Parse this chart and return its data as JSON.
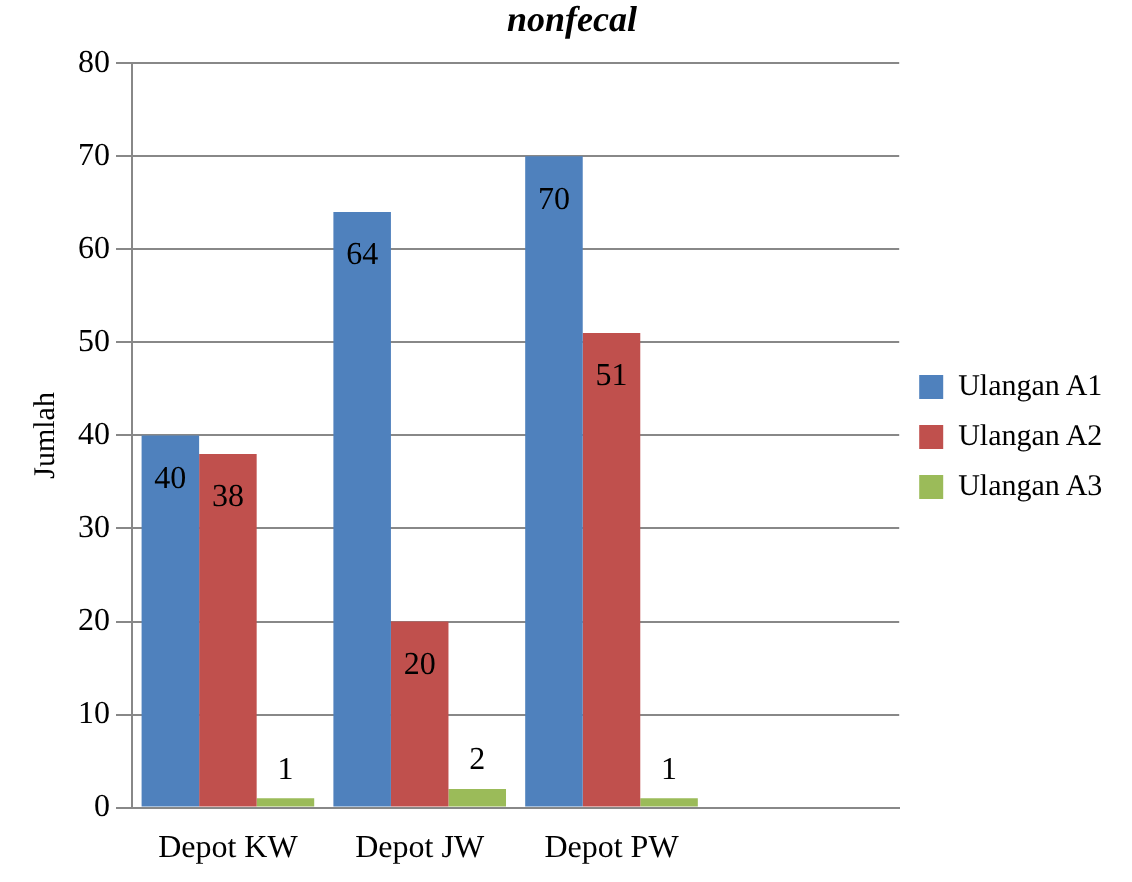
{
  "chart_data": {
    "type": "bar",
    "title": "nonfecal",
    "ylabel": "Jumlah",
    "categories": [
      "Depot KW",
      "Depot JW",
      "Depot PW",
      null
    ],
    "series": [
      {
        "name": "Ulangan A1",
        "color": "#4f81bd",
        "values": [
          40,
          64,
          70,
          null
        ]
      },
      {
        "name": "Ulangan A2",
        "color": "#c0504d",
        "values": [
          38,
          20,
          51,
          null
        ]
      },
      {
        "name": "Ulangan A3",
        "color": "#9bbb59",
        "values": [
          1,
          2,
          1,
          null
        ]
      }
    ],
    "ylim": [
      0,
      80
    ],
    "yticks": [
      0,
      10,
      20,
      30,
      40,
      50,
      60,
      70,
      80
    ],
    "grid": "y",
    "legend": "right",
    "data_labels": true
  }
}
